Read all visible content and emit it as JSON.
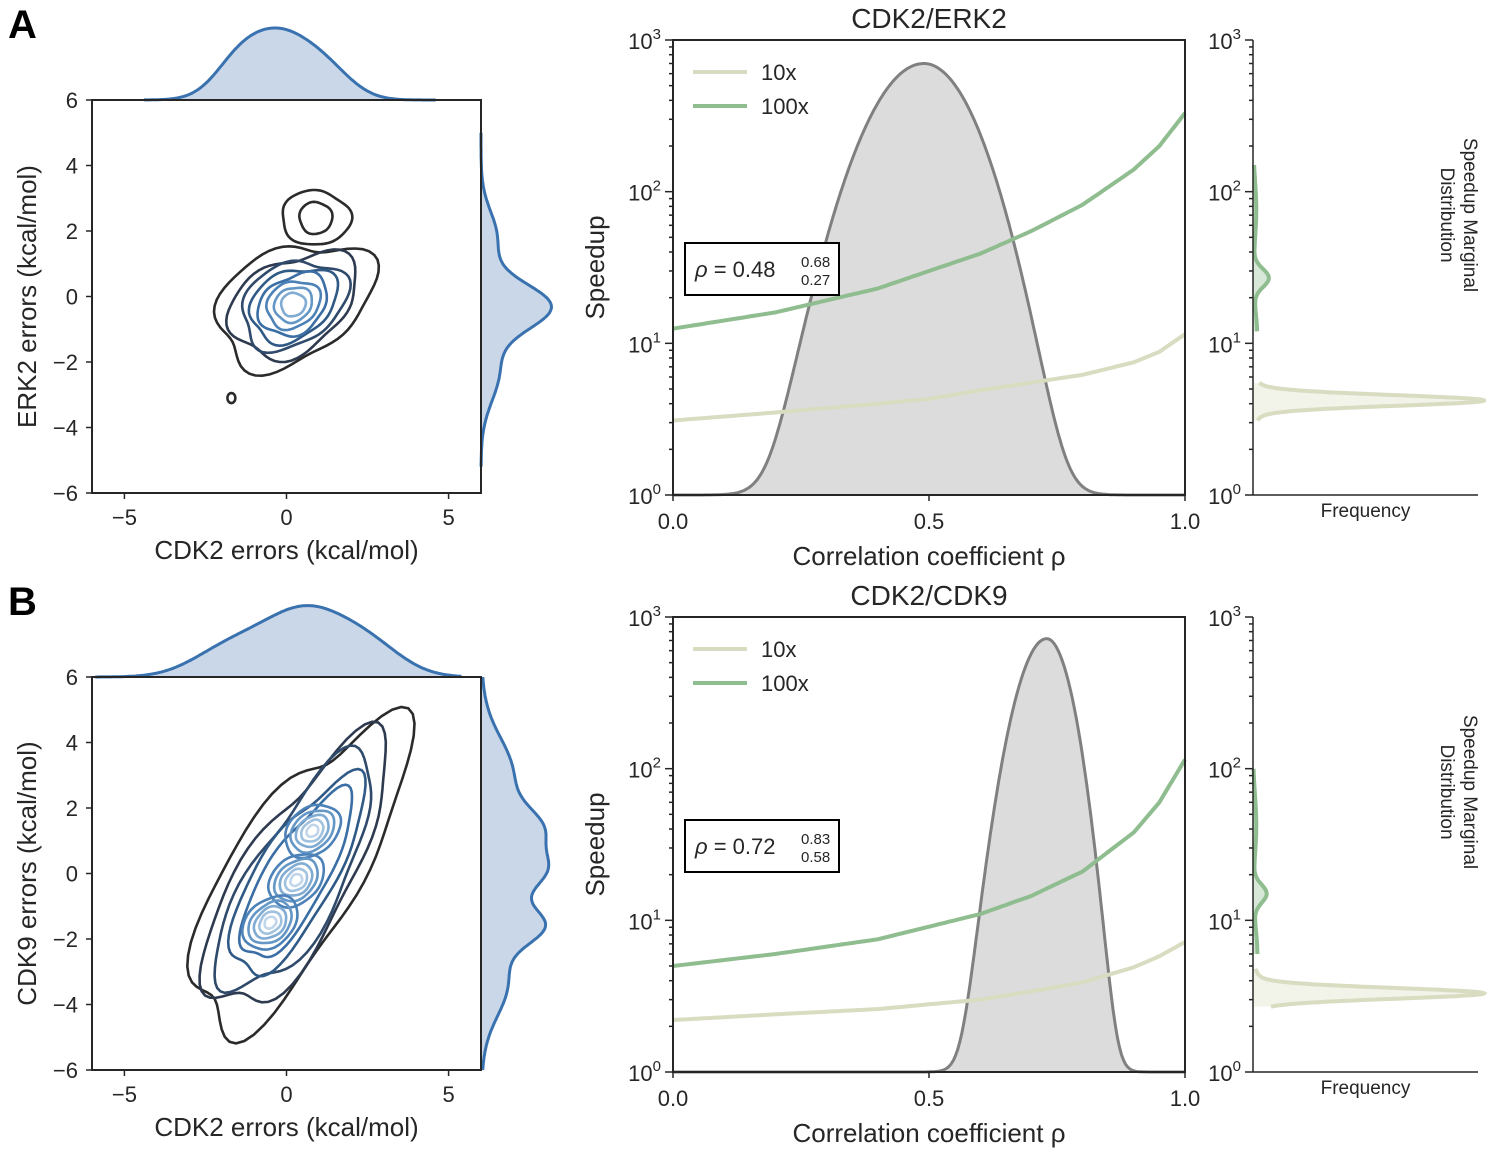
{
  "panels": [
    {
      "letter": "A",
      "title": "CDK2/ERK2",
      "joint_xlabel": "CDK2 errors (kcal/mol)",
      "joint_ylabel": "ERK2 errors (kcal/mol)",
      "speed_xlabel": "Correlation coefficient ρ",
      "speed_ylabel": "Speedup",
      "marg_label_line1": "Speedup Marginal",
      "marg_label_line2": "Distribution",
      "marg_xlabel": "Frequency",
      "annotation": {
        "prefix": "ρ = ",
        "value": "0.48",
        "upper": "0.68",
        "lower": "0.27"
      }
    },
    {
      "letter": "B",
      "title": "CDK2/CDK9",
      "joint_xlabel": "CDK2 errors (kcal/mol)",
      "joint_ylabel": "CDK9 errors (kcal/mol)",
      "speed_xlabel": "Correlation coefficient ρ",
      "speed_ylabel": "Speedup",
      "marg_label_line1": "Speedup Marginal",
      "marg_label_line2": "Distribution",
      "marg_xlabel": "Frequency",
      "annotation": {
        "prefix": "ρ = ",
        "value": "0.72",
        "upper": "0.83",
        "lower": "0.58"
      }
    }
  ],
  "chart_data": [
    {
      "panel": "A",
      "type": "contour",
      "xlabel": "CDK2 errors (kcal/mol)",
      "ylabel": "ERK2 errors (kcal/mol)",
      "xlim": [
        -6,
        6
      ],
      "ylim": [
        -6,
        6
      ],
      "xticks": [
        "−5",
        "0",
        "5"
      ],
      "xtick_values": [
        -5,
        0,
        5
      ],
      "yticks": [
        "−6",
        "−4",
        "−2",
        "0",
        "2",
        "4",
        "6"
      ],
      "ytick_values": [
        -6,
        -4,
        -2,
        0,
        2,
        4,
        6
      ],
      "center": [
        -0.1,
        0.0
      ],
      "secondary_mode": [
        0.9,
        2.4
      ],
      "outlier_point": [
        -1.7,
        -3.1
      ],
      "x_marginal_range": [
        -4.4,
        4.6
      ],
      "y_marginal_range": [
        -5.2,
        5.0
      ],
      "colormap": "Blues_r"
    },
    {
      "panel": "A",
      "type": "area",
      "title": "CDK2/ERK2",
      "xlabel": "Correlation coefficient ρ",
      "ylabel": "Speedup",
      "xlim": [
        0.0,
        1.0
      ],
      "yscale": "log",
      "ylim": [
        1,
        1000
      ],
      "xticks": [
        "0.0",
        "0.5",
        "1.0"
      ],
      "xtick_values": [
        0,
        0.5,
        1.0
      ],
      "yticks": [
        "10⁰",
        "10¹",
        "10²",
        "10³"
      ],
      "legend": [
        "10x",
        "100x"
      ],
      "legend_position": "upper-left",
      "series": [
        {
          "name": "10x",
          "color": "#d9dcc1",
          "x": [
            0.0,
            0.2,
            0.4,
            0.5,
            0.6,
            0.8,
            0.9,
            0.95,
            1.0
          ],
          "y": [
            3.1,
            3.5,
            4.0,
            4.3,
            4.9,
            6.2,
            7.5,
            8.8,
            11.5
          ]
        },
        {
          "name": "100x",
          "color": "#8fbd8f",
          "x": [
            0.0,
            0.2,
            0.4,
            0.5,
            0.6,
            0.7,
            0.8,
            0.9,
            0.95,
            1.0
          ],
          "y": [
            12.5,
            16.0,
            23.0,
            30.0,
            39.0,
            55.0,
            82.0,
            140.0,
            200.0,
            330.0
          ]
        }
      ],
      "distribution": {
        "color": "#808080",
        "mean": 0.49,
        "peak_speedup": 700,
        "x": [
          0.05,
          0.15,
          0.25,
          0.35,
          0.45,
          0.49,
          0.55,
          0.65,
          0.75,
          0.85
        ],
        "y": [
          1.0,
          1.05,
          1.7,
          12,
          350,
          700,
          300,
          15,
          1.3,
          1.0
        ]
      }
    },
    {
      "panel": "A",
      "type": "area",
      "ylabel": "Speedup Marginal Distribution",
      "xlabel": "Frequency",
      "yscale": "log",
      "ylim": [
        1,
        1000
      ],
      "yticks": [
        "10⁰",
        "10¹",
        "10²",
        "10³"
      ],
      "series": [
        {
          "name": "10x",
          "color": "#d9dcc1",
          "mode": 4.2,
          "peak_frequency": 1.0,
          "range": [
            3.1,
            5.5
          ]
        },
        {
          "name": "100x",
          "color": "#8fbd8f",
          "mode": 27.0,
          "peak_frequency": 0.07,
          "range": [
            12,
            150
          ]
        }
      ]
    },
    {
      "panel": "B",
      "type": "contour",
      "xlabel": "CDK2 errors (kcal/mol)",
      "ylabel": "CDK9 errors (kcal/mol)",
      "xlim": [
        -6,
        6
      ],
      "ylim": [
        -6,
        6
      ],
      "xticks": [
        "−5",
        "0",
        "5"
      ],
      "xtick_values": [
        -5,
        0,
        5
      ],
      "yticks": [
        "−6",
        "−4",
        "−2",
        "0",
        "2",
        "4",
        "6"
      ],
      "ytick_values": [
        -6,
        -4,
        -2,
        0,
        2,
        4,
        6
      ],
      "modes": [
        [
          0.8,
          1.3
        ],
        [
          0.3,
          -0.2
        ],
        [
          -0.5,
          -1.5
        ]
      ],
      "x_marginal_range": [
        -6,
        5.5
      ],
      "y_marginal_range": [
        -6,
        6
      ],
      "colormap": "Blues_r"
    },
    {
      "panel": "B",
      "type": "area",
      "title": "CDK2/CDK9",
      "xlabel": "Correlation coefficient ρ",
      "ylabel": "Speedup",
      "xlim": [
        0.0,
        1.0
      ],
      "yscale": "log",
      "ylim": [
        1,
        1000
      ],
      "xticks": [
        "0.0",
        "0.5",
        "1.0"
      ],
      "xtick_values": [
        0,
        0.5,
        1.0
      ],
      "yticks": [
        "10⁰",
        "10¹",
        "10²",
        "10³"
      ],
      "legend": [
        "10x",
        "100x"
      ],
      "legend_position": "upper-left",
      "series": [
        {
          "name": "10x",
          "color": "#d9dcc1",
          "x": [
            0.0,
            0.2,
            0.4,
            0.6,
            0.7,
            0.8,
            0.9,
            0.95,
            1.0
          ],
          "y": [
            2.2,
            2.4,
            2.6,
            3.0,
            3.4,
            3.9,
            4.9,
            5.8,
            7.2
          ]
        },
        {
          "name": "100x",
          "color": "#8fbd8f",
          "x": [
            0.0,
            0.2,
            0.4,
            0.6,
            0.7,
            0.8,
            0.9,
            0.95,
            1.0
          ],
          "y": [
            5.0,
            6.0,
            7.5,
            11.0,
            14.5,
            21.0,
            38.0,
            60.0,
            115.0
          ]
        }
      ],
      "distribution": {
        "color": "#808080",
        "mean": 0.73,
        "peak_speedup": 720,
        "x": [
          0.4,
          0.5,
          0.55,
          0.6,
          0.65,
          0.7,
          0.73,
          0.76,
          0.8,
          0.85,
          0.9
        ],
        "y": [
          1.0,
          1.05,
          1.3,
          4.0,
          40,
          400,
          720,
          350,
          20,
          1.3,
          1.0
        ]
      }
    },
    {
      "panel": "B",
      "type": "area",
      "ylabel": "Speedup Marginal Distribution",
      "xlabel": "Frequency",
      "yscale": "log",
      "ylim": [
        1,
        1000
      ],
      "yticks": [
        "10⁰",
        "10¹",
        "10²",
        "10³"
      ],
      "series": [
        {
          "name": "10x",
          "color": "#d9dcc1",
          "mode": 3.3,
          "peak_frequency": 1.0,
          "range": [
            2.7,
            4.8
          ]
        },
        {
          "name": "100x",
          "color": "#8fbd8f",
          "mode": 15.0,
          "peak_frequency": 0.06,
          "range": [
            6,
            100
          ]
        }
      ]
    }
  ]
}
